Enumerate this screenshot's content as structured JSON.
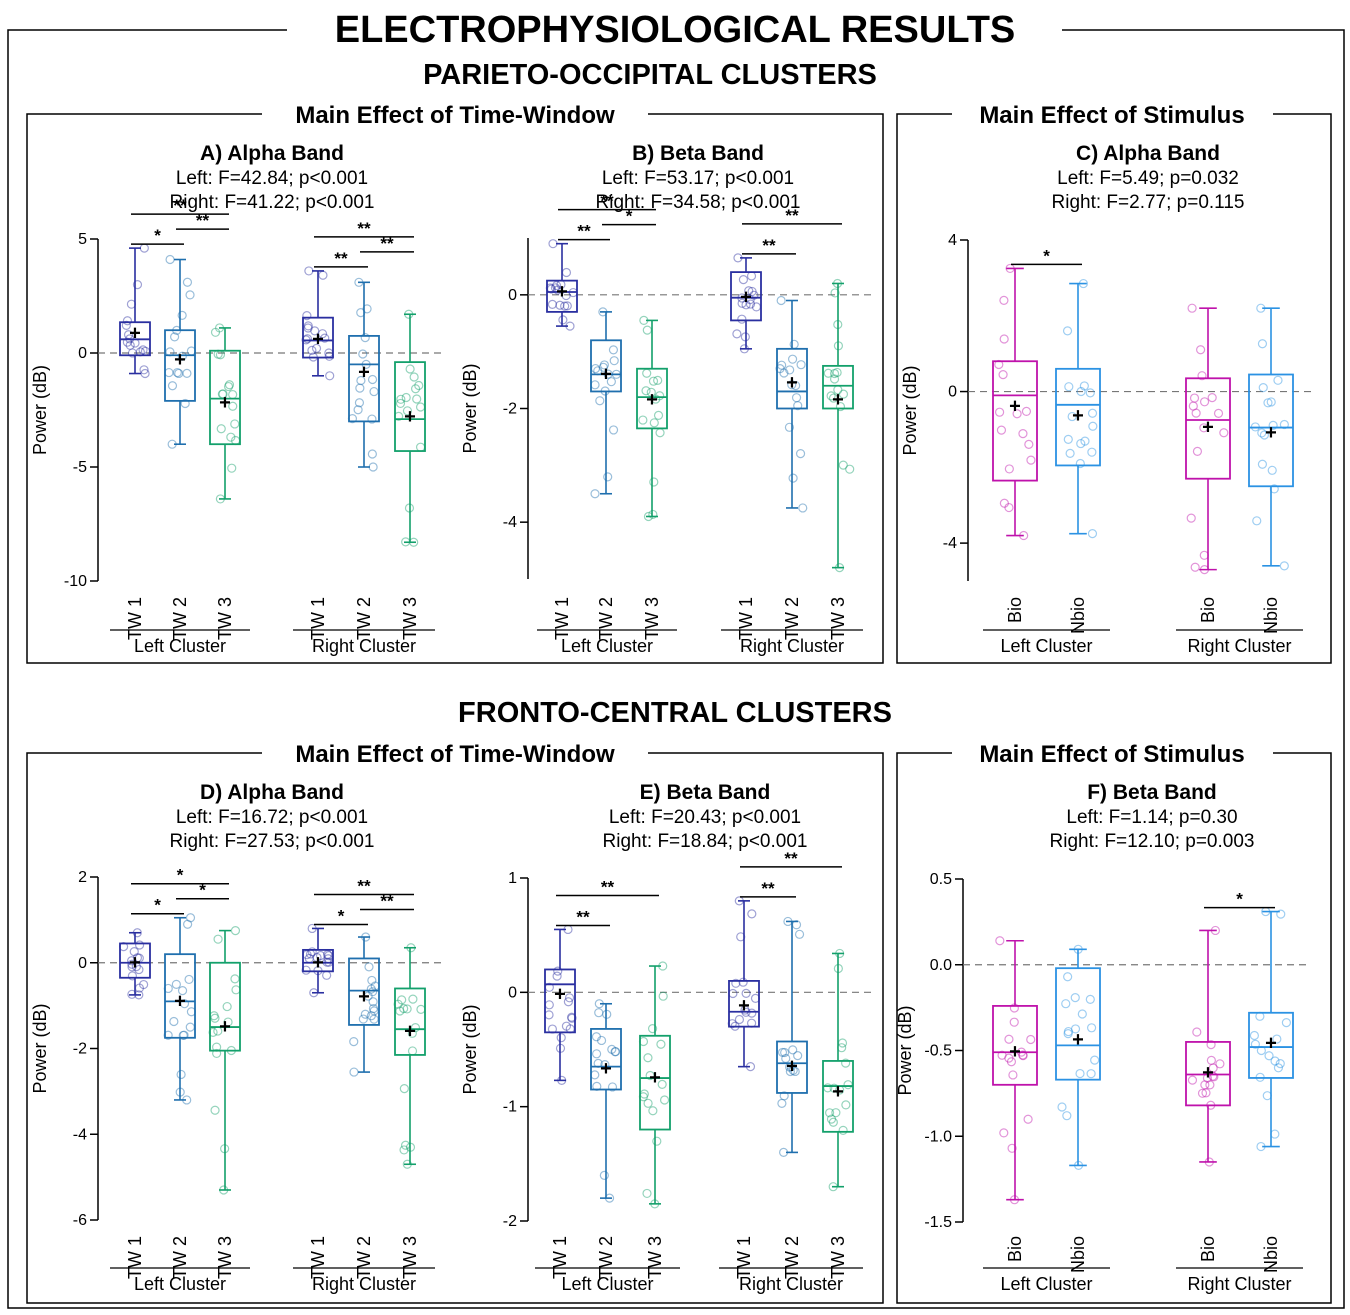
{
  "header": {
    "title": "ELECTROPHYSIOLOGICAL RESULTS",
    "section1": "PARIETO-OCCIPITAL CLUSTERS",
    "section2": "FRONTO-CENTRAL CLUSTERS",
    "group_time": "Main Effect of Time-Window",
    "group_stim": "Main Effect of Stimulus"
  },
  "colors": {
    "TW 1": "#2a2fa0",
    "TW 2": "#1f6fae",
    "TW 3": "#13a06b",
    "Bio": "#bf12ab",
    "Nbio": "#2b92e3"
  },
  "chart_data": [
    {
      "type": "boxplot",
      "panel": "A",
      "title": "A) Alpha Band",
      "stats": [
        "Left: F=42.84; p<0.001",
        "Right: F=41.22; p<0.001"
      ],
      "ylabel": "Power (dB)",
      "ylim": [
        -10,
        5
      ],
      "yticks": [
        5,
        0,
        -5,
        -10
      ],
      "ytick_labels": [
        "5",
        "0",
        "-5",
        "-10"
      ],
      "clusters": [
        "Left Cluster",
        "Right Cluster"
      ],
      "categories": [
        "TW 1",
        "TW 2",
        "TW 3"
      ],
      "boxes": [
        {
          "cluster": "Left Cluster",
          "category": "TW 1",
          "min": -0.9,
          "q1": -0.1,
          "median": 0.6,
          "q3": 1.35,
          "max": 4.6,
          "mean": 0.85
        },
        {
          "cluster": "Left Cluster",
          "category": "TW 2",
          "min": -4.0,
          "q1": -2.1,
          "median": -0.1,
          "q3": 1.0,
          "max": 4.1,
          "mean": -0.3
        },
        {
          "cluster": "Left Cluster",
          "category": "TW 3",
          "min": -6.4,
          "q1": -4.0,
          "median": -2.0,
          "q3": 0.1,
          "max": 1.1,
          "mean": -2.2
        },
        {
          "cluster": "Right Cluster",
          "category": "TW 1",
          "min": -1.0,
          "q1": -0.2,
          "median": 0.55,
          "q3": 1.55,
          "max": 3.6,
          "mean": 0.6
        },
        {
          "cluster": "Right Cluster",
          "category": "TW 2",
          "min": -5.0,
          "q1": -3.0,
          "median": -0.5,
          "q3": 0.75,
          "max": 3.1,
          "mean": -0.85
        },
        {
          "cluster": "Right Cluster",
          "category": "TW 3",
          "min": -8.3,
          "q1": -4.3,
          "median": -2.9,
          "q3": -0.4,
          "max": 1.7,
          "mean": -2.8
        }
      ],
      "significance": [
        {
          "cluster": "Left Cluster",
          "from": "TW 1",
          "to": "TW 2",
          "label": "*"
        },
        {
          "cluster": "Left Cluster",
          "from": "TW 1",
          "to": "TW 3",
          "label": "**"
        },
        {
          "cluster": "Left Cluster",
          "from": "TW 2",
          "to": "TW 3",
          "label": "**"
        },
        {
          "cluster": "Right Cluster",
          "from": "TW 1",
          "to": "TW 2",
          "label": "**"
        },
        {
          "cluster": "Right Cluster",
          "from": "TW 1",
          "to": "TW 3",
          "label": "**"
        },
        {
          "cluster": "Right Cluster",
          "from": "TW 2",
          "to": "TW 3",
          "label": "**"
        }
      ]
    },
    {
      "type": "boxplot",
      "panel": "B",
      "title": "B) Beta Band",
      "stats": [
        "Left: F=53.17; p<0.001",
        "Right: F=34.58; p<0.001"
      ],
      "ylabel": "Power (dB)",
      "ylim": [
        -5,
        1
      ],
      "yticks": [
        0,
        -2,
        -4
      ],
      "ytick_labels": [
        "0",
        "-2",
        "-4"
      ],
      "clusters": [
        "Left Cluster",
        "Right Cluster"
      ],
      "categories": [
        "TW 1",
        "TW 2",
        "TW 3"
      ],
      "boxes": [
        {
          "cluster": "Left Cluster",
          "category": "TW 1",
          "min": -0.55,
          "q1": -0.3,
          "median": 0.05,
          "q3": 0.25,
          "max": 0.9,
          "mean": 0.05
        },
        {
          "cluster": "Left Cluster",
          "category": "TW 2",
          "min": -3.5,
          "q1": -1.7,
          "median": -1.4,
          "q3": -0.8,
          "max": -0.3,
          "mean": -1.4
        },
        {
          "cluster": "Left Cluster",
          "category": "TW 3",
          "min": -3.9,
          "q1": -2.35,
          "median": -1.8,
          "q3": -1.3,
          "max": -0.45,
          "mean": -1.85
        },
        {
          "cluster": "Right Cluster",
          "category": "TW 1",
          "min": -0.95,
          "q1": -0.45,
          "median": -0.05,
          "q3": 0.4,
          "max": 0.65,
          "mean": -0.05
        },
        {
          "cluster": "Right Cluster",
          "category": "TW 2",
          "min": -3.75,
          "q1": -2.0,
          "median": -1.7,
          "q3": -0.95,
          "max": -0.1,
          "mean": -1.55
        },
        {
          "cluster": "Right Cluster",
          "category": "TW 3",
          "min": -4.8,
          "q1": -2.0,
          "median": -1.6,
          "q3": -1.25,
          "max": 0.2,
          "mean": -1.85
        }
      ],
      "significance": [
        {
          "cluster": "Left Cluster",
          "from": "TW 1",
          "to": "TW 2",
          "label": "**"
        },
        {
          "cluster": "Left Cluster",
          "from": "TW 1",
          "to": "TW 3",
          "label": "**"
        },
        {
          "cluster": "Left Cluster",
          "from": "TW 2",
          "to": "TW 3",
          "label": "*"
        },
        {
          "cluster": "Right Cluster",
          "from": "TW 1",
          "to": "TW 2",
          "label": "**"
        },
        {
          "cluster": "Right Cluster",
          "from": "TW 1",
          "to": "TW 3",
          "label": "**"
        }
      ]
    },
    {
      "type": "boxplot",
      "panel": "C",
      "title": "C) Alpha Band",
      "stats": [
        "Left: F=5.49; p=0.032",
        "Right: F=2.77; p=0.115"
      ],
      "ylabel": "Power (dB)",
      "ylim": [
        -5,
        4
      ],
      "yticks": [
        4,
        0,
        -4
      ],
      "ytick_labels": [
        "4",
        "0",
        "-4"
      ],
      "clusters": [
        "Left Cluster",
        "Right Cluster"
      ],
      "categories": [
        "Bio",
        "Nbio"
      ],
      "boxes": [
        {
          "cluster": "Left Cluster",
          "category": "Bio",
          "min": -3.8,
          "q1": -2.35,
          "median": -0.1,
          "q3": 0.8,
          "max": 3.25,
          "mean": -0.4
        },
        {
          "cluster": "Left Cluster",
          "category": "Nbio",
          "min": -3.75,
          "q1": -1.95,
          "median": -0.35,
          "q3": 0.6,
          "max": 2.85,
          "mean": -0.65
        },
        {
          "cluster": "Right Cluster",
          "category": "Bio",
          "min": -4.7,
          "q1": -2.3,
          "median": -0.75,
          "q3": 0.35,
          "max": 2.2,
          "mean": -0.95
        },
        {
          "cluster": "Right Cluster",
          "category": "Nbio",
          "min": -4.6,
          "q1": -2.5,
          "median": -0.95,
          "q3": 0.45,
          "max": 2.2,
          "mean": -1.1
        }
      ],
      "significance": [
        {
          "cluster": "Left Cluster",
          "from": "Bio",
          "to": "Nbio",
          "label": "*"
        }
      ]
    },
    {
      "type": "boxplot",
      "panel": "D",
      "title": "D) Alpha Band",
      "stats": [
        "Left: F=16.72; p<0.001",
        "Right: F=27.53; p<0.001"
      ],
      "ylabel": "Power (dB)",
      "ylim": [
        -6,
        2
      ],
      "yticks": [
        2,
        0,
        -2,
        -4,
        -6
      ],
      "ytick_labels": [
        "2",
        "0",
        "-2",
        "-4",
        "-6"
      ],
      "clusters": [
        "Left Cluster",
        "Right Cluster"
      ],
      "categories": [
        "TW 1",
        "TW 2",
        "TW 3"
      ],
      "boxes": [
        {
          "cluster": "Left Cluster",
          "category": "TW 1",
          "min": -0.75,
          "q1": -0.35,
          "median": 0.0,
          "q3": 0.45,
          "max": 0.7,
          "mean": 0.0
        },
        {
          "cluster": "Left Cluster",
          "category": "TW 2",
          "min": -3.2,
          "q1": -1.75,
          "median": -0.9,
          "q3": 0.2,
          "max": 1.05,
          "mean": -0.9
        },
        {
          "cluster": "Left Cluster",
          "category": "TW 3",
          "min": -5.3,
          "q1": -2.05,
          "median": -1.5,
          "q3": 0.0,
          "max": 0.75,
          "mean": -1.5
        },
        {
          "cluster": "Right Cluster",
          "category": "TW 1",
          "min": -0.7,
          "q1": -0.2,
          "median": 0.0,
          "q3": 0.3,
          "max": 0.8,
          "mean": 0.0
        },
        {
          "cluster": "Right Cluster",
          "category": "TW 2",
          "min": -2.55,
          "q1": -1.45,
          "median": -0.65,
          "q3": 0.1,
          "max": 0.6,
          "mean": -0.8
        },
        {
          "cluster": "Right Cluster",
          "category": "TW 3",
          "min": -4.7,
          "q1": -2.15,
          "median": -1.55,
          "q3": -0.6,
          "max": 0.35,
          "mean": -1.6
        }
      ],
      "significance": [
        {
          "cluster": "Left Cluster",
          "from": "TW 1",
          "to": "TW 2",
          "label": "*"
        },
        {
          "cluster": "Left Cluster",
          "from": "TW 1",
          "to": "TW 3",
          "label": "*"
        },
        {
          "cluster": "Left Cluster",
          "from": "TW 2",
          "to": "TW 3",
          "label": "*"
        },
        {
          "cluster": "Right Cluster",
          "from": "TW 1",
          "to": "TW 2",
          "label": "*"
        },
        {
          "cluster": "Right Cluster",
          "from": "TW 1",
          "to": "TW 3",
          "label": "**"
        },
        {
          "cluster": "Right Cluster",
          "from": "TW 2",
          "to": "TW 3",
          "label": "**"
        }
      ]
    },
    {
      "type": "boxplot",
      "panel": "E",
      "title": "E) Beta Band",
      "stats": [
        "Left: F=20.43; p<0.001",
        "Right: F=18.84; p<0.001"
      ],
      "ylabel": "Power (dB)",
      "ylim": [
        -2,
        1
      ],
      "yticks": [
        1,
        0,
        -1,
        -2
      ],
      "ytick_labels": [
        "1",
        "0",
        "-1",
        "-2"
      ],
      "clusters": [
        "Left Cluster",
        "Right Cluster"
      ],
      "categories": [
        "TW 1",
        "TW 2",
        "TW 3"
      ],
      "boxes": [
        {
          "cluster": "Left Cluster",
          "category": "TW 1",
          "min": -0.77,
          "q1": -0.35,
          "median": 0.07,
          "q3": 0.2,
          "max": 0.55,
          "mean": -0.02
        },
        {
          "cluster": "Left Cluster",
          "category": "TW 2",
          "min": -1.8,
          "q1": -0.85,
          "median": -0.65,
          "q3": -0.32,
          "max": -0.1,
          "mean": -0.67
        },
        {
          "cluster": "Left Cluster",
          "category": "TW 3",
          "min": -1.85,
          "q1": -1.2,
          "median": -0.75,
          "q3": -0.38,
          "max": 0.23,
          "mean": -0.75
        },
        {
          "cluster": "Right Cluster",
          "category": "TW 1",
          "min": -0.65,
          "q1": -0.3,
          "median": -0.17,
          "q3": 0.1,
          "max": 0.8,
          "mean": -0.12
        },
        {
          "cluster": "Right Cluster",
          "category": "TW 2",
          "min": -1.4,
          "q1": -0.88,
          "median": -0.62,
          "q3": -0.43,
          "max": 0.62,
          "mean": -0.65
        },
        {
          "cluster": "Right Cluster",
          "category": "TW 3",
          "min": -1.7,
          "q1": -1.22,
          "median": -0.82,
          "q3": -0.6,
          "max": 0.34,
          "mean": -0.87
        }
      ],
      "significance": [
        {
          "cluster": "Left Cluster",
          "from": "TW 1",
          "to": "TW 2",
          "label": "**"
        },
        {
          "cluster": "Left Cluster",
          "from": "TW 1",
          "to": "TW 3",
          "label": "**"
        },
        {
          "cluster": "Right Cluster",
          "from": "TW 1",
          "to": "TW 2",
          "label": "**"
        },
        {
          "cluster": "Right Cluster",
          "from": "TW 1",
          "to": "TW 3",
          "label": "**"
        }
      ]
    },
    {
      "type": "boxplot",
      "panel": "F",
      "title": "F) Beta Band",
      "stats": [
        "Left: F=1.14; p=0.30",
        "Right: F=12.10; p=0.003"
      ],
      "ylabel": "Power (dB)",
      "ylim": [
        -1.5,
        0.5
      ],
      "yticks": [
        0.5,
        0.0,
        -0.5,
        -1.0,
        -1.5
      ],
      "ytick_labels": [
        "0.5",
        "0.0",
        "-0.5",
        "-1.0",
        "-1.5"
      ],
      "clusters": [
        "Left Cluster",
        "Right Cluster"
      ],
      "categories": [
        "Bio",
        "Nbio"
      ],
      "boxes": [
        {
          "cluster": "Left Cluster",
          "category": "Bio",
          "min": -1.37,
          "q1": -0.7,
          "median": -0.51,
          "q3": -0.24,
          "max": 0.14,
          "mean": -0.51
        },
        {
          "cluster": "Left Cluster",
          "category": "Nbio",
          "min": -1.17,
          "q1": -0.67,
          "median": -0.47,
          "q3": -0.02,
          "max": 0.09,
          "mean": -0.44
        },
        {
          "cluster": "Right Cluster",
          "category": "Bio",
          "min": -1.15,
          "q1": -0.82,
          "median": -0.64,
          "q3": -0.45,
          "max": 0.2,
          "mean": -0.63
        },
        {
          "cluster": "Right Cluster",
          "category": "Nbio",
          "min": -1.06,
          "q1": -0.66,
          "median": -0.48,
          "q3": -0.28,
          "max": 0.31,
          "mean": -0.46
        }
      ],
      "significance": [
        {
          "cluster": "Right Cluster",
          "from": "Bio",
          "to": "Nbio",
          "label": "*"
        }
      ]
    }
  ]
}
